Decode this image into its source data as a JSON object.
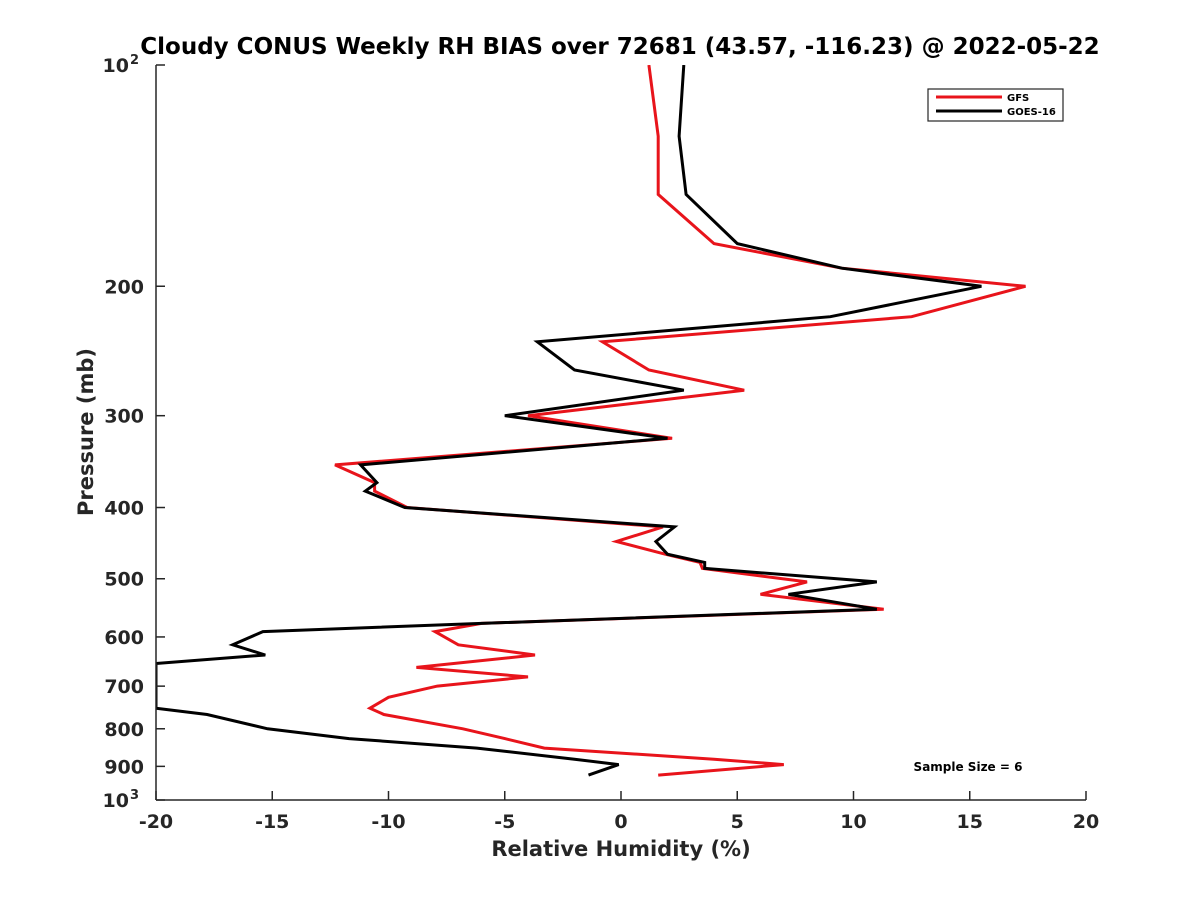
{
  "chart_data": {
    "type": "line",
    "title": "Cloudy CONUS Weekly RH BIAS over 72681 (43.57, -116.23) @ 2022-05-22",
    "xlabel": "Relative Humidity (%)",
    "ylabel": "Pressure (mb)",
    "xlim": [
      -20,
      20
    ],
    "ylim": [
      100,
      1000
    ],
    "yscale": "log",
    "y_reversed": true,
    "x_ticks": [
      "-20",
      "-15",
      "-10",
      "-5",
      "0",
      "5",
      "10",
      "15",
      "20"
    ],
    "y_ticks": [
      {
        "value": 100,
        "base": "10",
        "exp": "2"
      },
      {
        "value": 200,
        "label": "200"
      },
      {
        "value": 300,
        "label": "300"
      },
      {
        "value": 400,
        "label": "400"
      },
      {
        "value": 500,
        "label": "500"
      },
      {
        "value": 600,
        "label": "600"
      },
      {
        "value": 700,
        "label": "700"
      },
      {
        "value": 800,
        "label": "800"
      },
      {
        "value": 900,
        "label": "900"
      },
      {
        "value": 1000,
        "base": "10",
        "exp": "3"
      }
    ],
    "grid": false,
    "legend": "top-right",
    "annotation": "Sample Size = 6",
    "series": [
      {
        "name": "GFS",
        "color": "#e8141b",
        "points": [
          [
            1.2,
            100
          ],
          [
            1.6,
            125
          ],
          [
            1.6,
            150
          ],
          [
            4.0,
            175
          ],
          [
            9.5,
            189
          ],
          [
            17.4,
            200
          ],
          [
            12.5,
            220
          ],
          [
            -0.8,
            238
          ],
          [
            1.2,
            260
          ],
          [
            5.3,
            277
          ],
          [
            -4.0,
            300
          ],
          [
            2.2,
            322
          ],
          [
            -12.3,
            350
          ],
          [
            -10.6,
            370
          ],
          [
            -10.6,
            380
          ],
          [
            -9.2,
            400
          ],
          [
            1.8,
            425
          ],
          [
            -0.2,
            445
          ],
          [
            1.9,
            463
          ],
          [
            3.4,
            475
          ],
          [
            3.5,
            484
          ],
          [
            8.0,
            505
          ],
          [
            6.0,
            525
          ],
          [
            11.3,
            550
          ],
          [
            -6.0,
            575
          ],
          [
            -8.0,
            590
          ],
          [
            -7.0,
            615
          ],
          [
            -3.7,
            635
          ],
          [
            -8.8,
            660
          ],
          [
            -4.0,
            680
          ],
          [
            -7.9,
            700
          ],
          [
            -10.0,
            725
          ],
          [
            -10.8,
            750
          ],
          [
            -10.2,
            765
          ],
          [
            -6.8,
            800
          ],
          [
            -5.0,
            825
          ],
          [
            -3.3,
            850
          ],
          [
            4.0,
            880
          ],
          [
            7.0,
            895
          ],
          [
            1.6,
            925
          ]
        ]
      },
      {
        "name": "GOES-16",
        "color": "#000000",
        "points": [
          [
            2.7,
            100
          ],
          [
            2.5,
            125
          ],
          [
            2.8,
            150
          ],
          [
            5.0,
            175
          ],
          [
            9.5,
            189
          ],
          [
            15.5,
            200
          ],
          [
            9.0,
            220
          ],
          [
            -3.6,
            238
          ],
          [
            -2.0,
            260
          ],
          [
            2.7,
            277
          ],
          [
            -5.0,
            300
          ],
          [
            2.0,
            322
          ],
          [
            -11.2,
            350
          ],
          [
            -10.5,
            370
          ],
          [
            -11.0,
            380
          ],
          [
            -9.3,
            400
          ],
          [
            2.3,
            425
          ],
          [
            1.5,
            445
          ],
          [
            2.0,
            463
          ],
          [
            3.6,
            475
          ],
          [
            3.6,
            484
          ],
          [
            11.0,
            505
          ],
          [
            7.2,
            525
          ],
          [
            11.0,
            550
          ],
          [
            -6.0,
            575
          ],
          [
            -15.4,
            590
          ],
          [
            -16.7,
            615
          ],
          [
            -15.3,
            635
          ],
          [
            -20.0,
            652
          ],
          [
            -20.0,
            680
          ],
          [
            -20.0,
            700
          ],
          [
            -20.0,
            725
          ],
          [
            -20.0,
            750
          ],
          [
            -17.8,
            765
          ],
          [
            -15.2,
            800
          ],
          [
            -11.7,
            825
          ],
          [
            -6.2,
            850
          ],
          [
            -2.0,
            880
          ],
          [
            -0.1,
            895
          ],
          [
            -1.4,
            925
          ]
        ]
      }
    ]
  }
}
